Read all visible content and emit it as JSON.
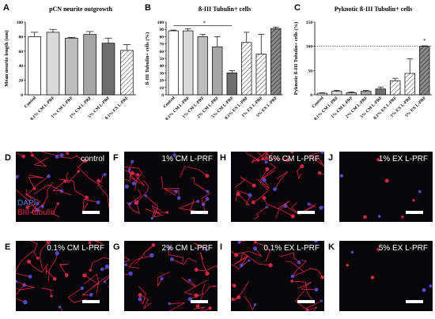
{
  "chart_data": [
    {
      "panel": "A",
      "type": "bar",
      "title": "pCN neurite outgrowth",
      "ylabel": "Mean neurite length (um)",
      "ylim": [
        0,
        100
      ],
      "yticks": [
        0,
        20,
        40,
        60,
        80,
        100
      ],
      "categories": [
        "Control",
        "0.1% CM L-PRF",
        "1% CM L-PRF",
        "2% CM L-PRF",
        "5% CM L-PRF",
        "0.1% EX L-PRF"
      ],
      "values": [
        80,
        86,
        78,
        83,
        71,
        61
      ],
      "errors": [
        6,
        4,
        1,
        4,
        7,
        8
      ],
      "fills": [
        "#ffffff",
        "#d9d9d9",
        "#bdbdbd",
        "#a6a6a6",
        "#6e6e6e",
        "hatch"
      ]
    },
    {
      "panel": "B",
      "type": "bar",
      "title": "ß-III Tubulin+ cells",
      "ylabel": "ß-III Tubulin+ cells (%)",
      "ylim": [
        0,
        100
      ],
      "yticks": [
        0,
        10,
        20,
        30,
        40,
        50,
        60,
        70,
        80,
        90,
        100
      ],
      "categories": [
        "Control",
        "0.1% CM L-PRF",
        "1% CM L-PRF",
        "2% CM L-PRF",
        "5% CM L-PRF",
        "0.1% EX L-PRF",
        "1% EX L-PRF",
        "5% EX L-PRF"
      ],
      "values": [
        88,
        88,
        80,
        66,
        30,
        72,
        56,
        91
      ],
      "errors": [
        1,
        3,
        3,
        14,
        3,
        14,
        27,
        2
      ],
      "fills": [
        "#ffffff",
        "#d9d9d9",
        "#bdbdbd",
        "#a6a6a6",
        "#6e6e6e",
        "hatch",
        "hatch",
        "hatchdark"
      ],
      "annotation": "*"
    },
    {
      "panel": "C",
      "type": "bar",
      "title": "Pyknotic ß-III Tubulin+ cells",
      "ylabel": "Pyknotic ß-III Tubulin+ cells (%)",
      "ylim": [
        0,
        150
      ],
      "yticks": [
        0,
        50,
        100,
        150
      ],
      "categories": [
        "Control",
        "0.1% CM L-PRF",
        "1% CM L-PRF",
        "2% CM L-PRF",
        "5% CM L-PRF",
        "0.1% EX L-PRF",
        "1% EX L-PRF",
        "5% EX L-PRF"
      ],
      "values": [
        3,
        7,
        4,
        7,
        12,
        29,
        44,
        100
      ],
      "errors": [
        1,
        2,
        2,
        2,
        4,
        5,
        30,
        1
      ],
      "fills": [
        "#ffffff",
        "#d9d9d9",
        "#bdbdbd",
        "#a6a6a6",
        "#6e6e6e",
        "hatch",
        "hatch",
        "hatchdark"
      ],
      "reference_line": 100,
      "annotation": "*"
    }
  ],
  "micrographs": [
    {
      "letter": "D",
      "label": "control"
    },
    {
      "letter": "F",
      "label": "1% CM L-PRF"
    },
    {
      "letter": "H",
      "label": "5% CM L-PRF"
    },
    {
      "letter": "J",
      "label": "1% EX L-PRF"
    },
    {
      "letter": "E",
      "label": "0.1% CM L-PRF"
    },
    {
      "letter": "G",
      "label": "2% CM L-PRF"
    },
    {
      "letter": "I",
      "label": "0.1% EX L-PRF"
    },
    {
      "letter": "K",
      "label": "5% EX L-PRF"
    }
  ],
  "stain_legend": {
    "dapi": "DAPI",
    "tubulin": "BIII-tubulin"
  },
  "colors": {
    "neurite": "#e02a4a",
    "nucleus": "#5a4cd0",
    "background": "#07050a"
  }
}
